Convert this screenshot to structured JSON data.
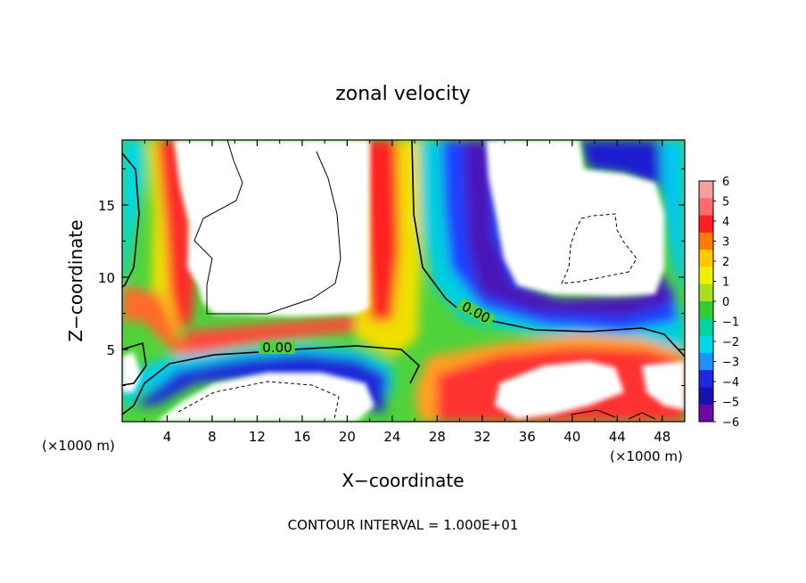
{
  "chart_data": {
    "type": "heatmap",
    "title": "zonal velocity",
    "xlabel": "X−coordinate",
    "ylabel": "Z−coordinate",
    "x_unit_left": "(×1000 m)",
    "x_unit_right": "(×1000 m)",
    "footer": "CONTOUR INTERVAL = 1.000E+01",
    "contour_label": "0.00",
    "xlim": [
      0,
      50
    ],
    "ylim": [
      0,
      19.5
    ],
    "x_ticks": [
      4,
      8,
      12,
      16,
      20,
      24,
      28,
      32,
      36,
      40,
      44,
      48
    ],
    "y_ticks": [
      5,
      10,
      15
    ],
    "colorbar": {
      "ticks": [
        6,
        5,
        4,
        3,
        2,
        1,
        0,
        -1,
        -2,
        -3,
        -4,
        -5,
        -6
      ],
      "colors": [
        "#f4a0a0",
        "#ff6a6a",
        "#ff1f1f",
        "#ff7a00",
        "#ffc800",
        "#f0f000",
        "#a6e020",
        "#33cc33",
        "#00d2a0",
        "#00d8e8",
        "#1e90ff",
        "#1e28e0",
        "#1a0fb0",
        "#6a0aa8"
      ]
    },
    "fields": [
      {
        "name": "background",
        "value": 0,
        "color": "#4fd23c"
      },
      {
        "name": "left-edge-jet",
        "value": 4.5,
        "color": "#ff3535"
      },
      {
        "name": "center-jet",
        "value": 4.5,
        "color": "#ff3535"
      },
      {
        "name": "upper-easterly-core",
        "value": -5,
        "color": "#2a20c8"
      },
      {
        "name": "lower-westerly-core",
        "value": 4.5,
        "color": "#ff3535"
      },
      {
        "name": "lower-easterly-band",
        "value": -4.5,
        "color": "#1e28e0"
      }
    ],
    "grid": false
  }
}
